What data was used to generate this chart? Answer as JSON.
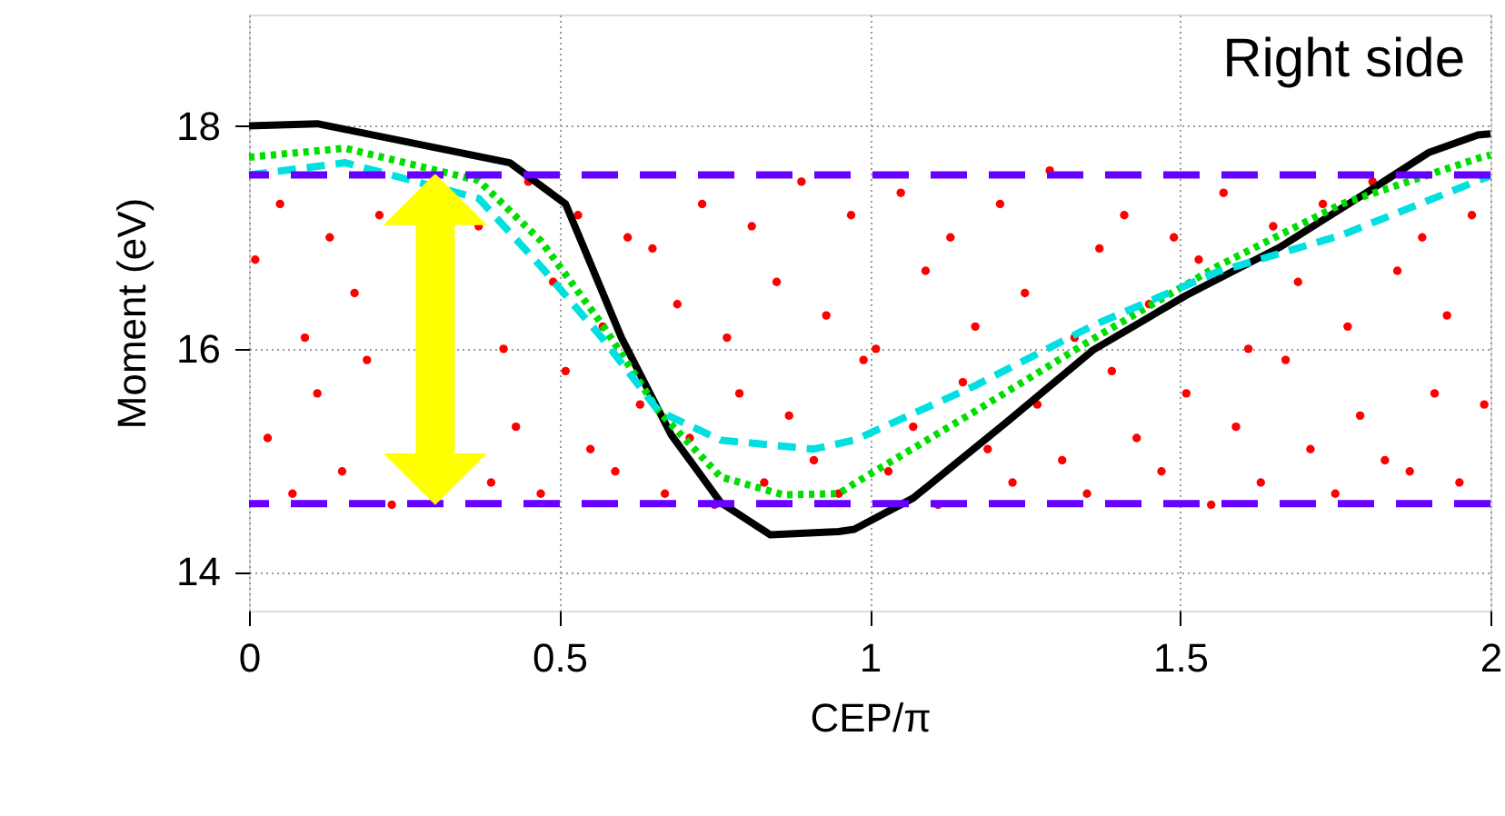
{
  "chart_data": {
    "type": "scatter",
    "annotations": [
      "Right side"
    ],
    "xlabel": "CEP/π",
    "ylabel": "Moment (eV)",
    "xlim": [
      0,
      2
    ],
    "ylim": [
      13.65,
      19
    ],
    "xticks": [
      0,
      0.5,
      1,
      1.5,
      2
    ],
    "yticks": [
      14,
      16,
      18
    ],
    "grid": true,
    "marker": "circle",
    "series": [
      {
        "color": "#ff0000",
        "x": [
          0.01,
          0.03,
          0.05,
          0.07,
          0.09,
          0.11,
          0.13,
          0.15,
          0.17,
          0.19,
          0.21,
          0.23,
          0.25,
          0.27,
          0.29,
          0.31,
          0.33,
          0.35,
          0.37,
          0.39,
          0.41,
          0.43,
          0.45,
          0.47,
          0.49,
          0.51,
          0.53,
          0.55,
          0.57,
          0.59,
          0.61,
          0.63,
          0.65,
          0.67,
          0.69,
          0.71,
          0.73,
          0.75,
          0.77,
          0.79,
          0.81,
          0.83,
          0.85,
          0.87,
          0.89,
          0.91,
          0.93,
          0.95,
          0.97,
          0.99,
          1.01,
          1.03,
          1.05,
          1.07,
          1.09,
          1.11,
          1.13,
          1.15,
          1.17,
          1.19,
          1.21,
          1.23,
          1.25,
          1.27,
          1.29,
          1.31,
          1.33,
          1.35,
          1.37,
          1.39,
          1.41,
          1.43,
          1.45,
          1.47,
          1.49,
          1.51,
          1.53,
          1.55,
          1.57,
          1.59,
          1.61,
          1.63,
          1.65,
          1.67,
          1.69,
          1.71,
          1.73,
          1.75,
          1.77,
          1.79,
          1.81,
          1.83,
          1.85,
          1.87,
          1.89,
          1.91,
          1.93,
          1.95,
          1.97,
          1.99
        ],
        "values": [
          16.8,
          15.2,
          17.3,
          14.7,
          16.1,
          15.6,
          17.0,
          14.9,
          16.5,
          15.9,
          17.2,
          14.6,
          null,
          null,
          null,
          null,
          null,
          null,
          17.1,
          14.8,
          16.0,
          15.3,
          17.5,
          14.7,
          16.6,
          15.8,
          17.2,
          15.1,
          16.2,
          14.9,
          17.0,
          15.5,
          16.9,
          14.7,
          16.4,
          15.2,
          17.3,
          14.6,
          16.1,
          15.6,
          17.1,
          14.8,
          16.6,
          15.4,
          17.5,
          15.0,
          16.3,
          14.7,
          17.2,
          15.9,
          16.0,
          14.9,
          17.4,
          15.3,
          16.7,
          14.6,
          17.0,
          15.7,
          16.2,
          15.1,
          17.3,
          14.8,
          16.5,
          15.5,
          17.6,
          15.0,
          16.1,
          14.7,
          16.9,
          15.8,
          17.2,
          15.2,
          16.4,
          14.9,
          17.0,
          15.6,
          16.8,
          14.6,
          17.4,
          15.3,
          16.0,
          14.8,
          17.1,
          15.9,
          16.6,
          15.1,
          17.3,
          14.7,
          16.2,
          15.4,
          17.5,
          15.0,
          16.7,
          14.9,
          17.0,
          15.6,
          16.3,
          14.8,
          17.2,
          15.5
        ]
      },
      {
        "type": "line",
        "color": "#000000",
        "line_style": "solid",
        "marker": "none",
        "x": [
          0,
          0.11,
          0.42,
          0.51,
          0.6,
          0.68,
          0.76,
          0.84,
          0.95,
          0.975,
          1.07,
          1.22,
          1.36,
          1.51,
          1.66,
          1.8,
          1.9,
          1.98,
          2
        ],
        "values": [
          18.0,
          18.02,
          17.67,
          17.3,
          16.1,
          15.23,
          14.62,
          14.33,
          14.36,
          14.38,
          14.66,
          15.34,
          15.99,
          16.48,
          16.91,
          17.4,
          17.76,
          17.92,
          17.93
        ]
      },
      {
        "type": "line",
        "color": "#00dd00",
        "line_style": "dotted",
        "marker": "none",
        "x": [
          0,
          0.155,
          0.37,
          0.47,
          0.57,
          0.66,
          0.76,
          0.86,
          0.95,
          0.975,
          1.17,
          1.36,
          1.56,
          1.76,
          1.98,
          2
        ],
        "values": [
          17.72,
          17.8,
          17.51,
          16.97,
          16.21,
          15.44,
          14.85,
          14.69,
          14.7,
          14.79,
          15.44,
          16.09,
          16.74,
          17.3,
          17.71,
          17.74
        ]
      },
      {
        "type": "line",
        "color": "#00e0e0",
        "line_style": "dashed",
        "marker": "none",
        "x": [
          0,
          0.155,
          0.37,
          0.47,
          0.57,
          0.66,
          0.76,
          0.91,
          0.975,
          1.17,
          1.36,
          1.56,
          1.76,
          1.98,
          2
        ],
        "values": [
          17.56,
          17.67,
          17.35,
          16.74,
          16.09,
          15.44,
          15.18,
          15.1,
          15.18,
          15.67,
          16.21,
          16.69,
          17.02,
          17.51,
          17.55
        ]
      }
    ],
    "ref_lines": [
      {
        "axis": "y",
        "value": 17.56,
        "color": "#6600ff",
        "line_style": "dashed"
      },
      {
        "axis": "y",
        "value": 14.61,
        "color": "#6600ff",
        "line_style": "dashed"
      }
    ]
  }
}
